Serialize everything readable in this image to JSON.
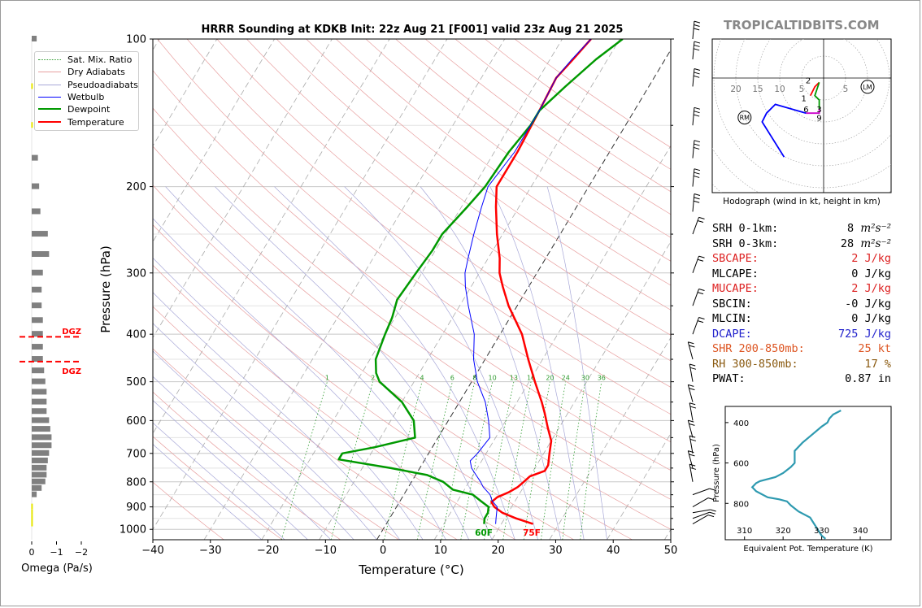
{
  "title": "HRRR Sounding at KDKB Init: 22z Aug 21 [F001] valid 23z Aug 21 2025",
  "brand": "TROPICALTIDBITS.COM",
  "omega_label": "Omega (Pa/s)",
  "omega_ticks": [
    "0",
    "−1",
    "−2"
  ],
  "dgz_label": "DGZ",
  "surface_labels": {
    "dewpoint": "60F",
    "temperature": "75F"
  },
  "mixing_ratio_labels": [
    "1",
    "2",
    "4",
    "6",
    "8",
    "10",
    "13",
    "16",
    "20",
    "24",
    "30",
    "36"
  ],
  "legend": [
    {
      "label": "Sat. Mix. Ratio",
      "color": "#2e9b2e",
      "style": "dotted"
    },
    {
      "label": "Dry Adiabats",
      "color": "#e8a0a0",
      "style": "solid"
    },
    {
      "label": "Pseudoadiabats",
      "color": "#a8a8d8",
      "style": "solid"
    },
    {
      "label": "Wetbulb",
      "color": "#0000ff",
      "style": "solid"
    },
    {
      "label": "Dewpoint",
      "color": "#009900",
      "style": "solid-thick"
    },
    {
      "label": "Temperature",
      "color": "#ff0000",
      "style": "solid-thick"
    }
  ],
  "hodograph": {
    "caption": "Hodograph (wind in kt, height in km)",
    "ring_labels": [
      "20",
      "15",
      "10",
      "5",
      "5"
    ],
    "height_labels": [
      "2",
      "1",
      "6",
      "3",
      "9"
    ],
    "storm_motion_labels": [
      "RM",
      "LM"
    ]
  },
  "stats": [
    {
      "label": "SRH 0-1km:",
      "value": "8",
      "unit": "m²s⁻²",
      "color": "#000000"
    },
    {
      "label": "SRH 0-3km:",
      "value": "28",
      "unit": "m²s⁻²",
      "color": "#000000"
    },
    {
      "label": "SBCAPE:",
      "value": "2 J/kg",
      "unit": "",
      "color": "#dd2222"
    },
    {
      "label": "MLCAPE:",
      "value": "0 J/kg",
      "unit": "",
      "color": "#000000"
    },
    {
      "label": "MUCAPE:",
      "value": "2 J/kg",
      "unit": "",
      "color": "#dd2222"
    },
    {
      "label": "SBCIN:",
      "value": "-0 J/kg",
      "unit": "",
      "color": "#000000"
    },
    {
      "label": "MLCIN:",
      "value": "0 J/kg",
      "unit": "",
      "color": "#000000"
    },
    {
      "label": "DCAPE:",
      "value": "725 J/kg",
      "unit": "",
      "color": "#2222cc"
    },
    {
      "label": "SHR 200-850mb:",
      "value": "25 kt",
      "unit": "",
      "color": "#dd5522"
    },
    {
      "label": "RH 300-850mb:",
      "value": "17 %",
      "unit": "",
      "color": "#8a5a10"
    },
    {
      "label": "PWAT:",
      "value": "0.87 in",
      "unit": "",
      "color": "#000000"
    }
  ],
  "chart_data": [
    {
      "type": "line",
      "subtype": "skew-T log-P sounding",
      "xlabel": "Temperature (°C)",
      "ylabel": "Pressure (hPa)",
      "xlim": [
        -40,
        50
      ],
      "ylim": [
        1050,
        100
      ],
      "y_scale": "log",
      "x_ticks": [
        -40,
        -30,
        -20,
        -10,
        0,
        10,
        20,
        30,
        40,
        50
      ],
      "y_ticks": [
        100,
        200,
        300,
        400,
        500,
        600,
        700,
        800,
        900,
        1000
      ],
      "series": [
        {
          "name": "Temperature",
          "color": "#ff0000",
          "points": [
            [
              975,
              25.5
            ],
            [
              950,
              22
            ],
            [
              925,
              19
            ],
            [
              900,
              17
            ],
            [
              880,
              16
            ],
            [
              860,
              16.5
            ],
            [
              840,
              18
            ],
            [
              820,
              19
            ],
            [
              800,
              19.5
            ],
            [
              780,
              20
            ],
            [
              760,
              22
            ],
            [
              740,
              22
            ],
            [
              700,
              21
            ],
            [
              660,
              20
            ],
            [
              620,
              18
            ],
            [
              580,
              16
            ],
            [
              550,
              14.3
            ],
            [
              500,
              11
            ],
            [
              450,
              7.5
            ],
            [
              400,
              3.8
            ],
            [
              350,
              -1.5
            ],
            [
              320,
              -4.5
            ],
            [
              300,
              -6.5
            ],
            [
              280,
              -8
            ],
            [
              250,
              -11
            ],
            [
              220,
              -14
            ],
            [
              200,
              -16
            ],
            [
              170,
              -16
            ],
            [
              140,
              -16.5
            ],
            [
              120,
              -17
            ],
            [
              110,
              -16
            ],
            [
              100,
              -15
            ]
          ]
        },
        {
          "name": "Dewpoint",
          "color": "#009900",
          "points": [
            [
              975,
              17
            ],
            [
              950,
              16.5
            ],
            [
              925,
              16.5
            ],
            [
              900,
              16
            ],
            [
              875,
              14
            ],
            [
              850,
              12
            ],
            [
              830,
              8
            ],
            [
              800,
              5.5
            ],
            [
              775,
              2
            ],
            [
              750,
              -5
            ],
            [
              720,
              -15
            ],
            [
              700,
              -15
            ],
            [
              680,
              -10
            ],
            [
              650,
              -4
            ],
            [
              600,
              -6
            ],
            [
              550,
              -10
            ],
            [
              500,
              -16
            ],
            [
              480,
              -17.5
            ],
            [
              450,
              -19
            ],
            [
              400,
              -20
            ],
            [
              370,
              -20.5
            ],
            [
              340,
              -21.5
            ],
            [
              300,
              -21
            ],
            [
              270,
              -20.5
            ],
            [
              250,
              -20.5
            ],
            [
              220,
              -19
            ],
            [
              200,
              -18
            ],
            [
              170,
              -17.5
            ],
            [
              150,
              -16.5
            ],
            [
              140,
              -16.5
            ],
            [
              125,
              -14.5
            ],
            [
              110,
              -12
            ],
            [
              100,
              -9.5
            ]
          ]
        },
        {
          "name": "Wetbulb",
          "color": "#0000ff",
          "points": [
            [
              975,
              19
            ],
            [
              950,
              18.5
            ],
            [
              925,
              18
            ],
            [
              900,
              17.5
            ],
            [
              875,
              16
            ],
            [
              850,
              15
            ],
            [
              820,
              13
            ],
            [
              800,
              12
            ],
            [
              775,
              10.5
            ],
            [
              750,
              9
            ],
            [
              725,
              8
            ],
            [
              700,
              8.5
            ],
            [
              650,
              9
            ],
            [
              600,
              7
            ],
            [
              550,
              4.5
            ],
            [
              500,
              1
            ],
            [
              450,
              -2
            ],
            [
              400,
              -4.5
            ],
            [
              350,
              -8.5
            ],
            [
              320,
              -11
            ],
            [
              300,
              -12.5
            ],
            [
              280,
              -13.5
            ],
            [
              250,
              -15
            ],
            [
              220,
              -16.5
            ],
            [
              200,
              -17.5
            ],
            [
              170,
              -16.5
            ],
            [
              140,
              -16.5
            ],
            [
              120,
              -17
            ],
            [
              110,
              -16.2
            ],
            [
              100,
              -15
            ]
          ]
        }
      ],
      "wind_barb_levels": [
        975,
        950,
        925,
        900,
        850,
        800,
        750,
        700,
        650,
        600,
        550,
        500,
        450,
        400,
        350,
        300,
        250,
        225,
        200,
        175,
        150,
        125,
        110,
        100
      ]
    },
    {
      "type": "line",
      "subtype": "hodograph",
      "series": [
        {
          "name": "Hodograph",
          "points": [
            [
              -3,
              -4
            ],
            [
              -2,
              -2
            ],
            [
              -1,
              -1
            ],
            [
              -2,
              -4
            ],
            [
              -1,
              -5
            ],
            [
              -1,
              -7
            ],
            [
              -1,
              -8
            ],
            [
              -4,
              -8
            ],
            [
              -11,
              -6
            ],
            [
              -13,
              -8
            ],
            [
              -14,
              -10
            ],
            [
              -9,
              -18
            ]
          ]
        }
      ]
    },
    {
      "type": "line",
      "xlabel": "Equivalent Pot. Temperature (K)",
      "ylabel": "Pressure (hPa)",
      "xlim": [
        305,
        348
      ],
      "ylim": [
        980,
        320
      ],
      "x_ticks": [
        310,
        320,
        330,
        340
      ],
      "y_ticks": [
        400,
        600,
        800
      ],
      "series": [
        {
          "name": "Theta-E",
          "color": "#2e9ab0",
          "points": [
            [
              975,
              331
            ],
            [
              960,
              330
            ],
            [
              930,
              329
            ],
            [
              900,
              328
            ],
            [
              870,
              327
            ],
            [
              840,
              324
            ],
            [
              810,
              322
            ],
            [
              790,
              321
            ],
            [
              780,
              319
            ],
            [
              770,
              316
            ],
            [
              740,
              313
            ],
            [
              720,
              312
            ],
            [
              700,
              313
            ],
            [
              690,
              314
            ],
            [
              670,
              318
            ],
            [
              650,
              320
            ],
            [
              620,
              322
            ],
            [
              600,
              323
            ],
            [
              580,
              323
            ],
            [
              540,
              323
            ],
            [
              500,
              325
            ],
            [
              460,
              327.5
            ],
            [
              420,
              330
            ],
            [
              400,
              331.5
            ],
            [
              380,
              332
            ],
            [
              360,
              333
            ],
            [
              340,
              335
            ]
          ]
        }
      ]
    },
    {
      "type": "bar",
      "subtype": "omega profile",
      "xlabel": "Omega (Pa/s)",
      "xlim": [
        0.2,
        -2.2
      ],
      "x_ticks": [
        0,
        -1,
        -2
      ],
      "series": [
        {
          "name": "Omega",
          "points": [
            [
              975,
              0.02
            ],
            [
              950,
              0.02
            ],
            [
              925,
              0.02
            ],
            [
              900,
              0.02
            ],
            [
              850,
              -0.2
            ],
            [
              825,
              -0.4
            ],
            [
              800,
              -0.55
            ],
            [
              775,
              -0.6
            ],
            [
              750,
              -0.6
            ],
            [
              725,
              -0.65
            ],
            [
              700,
              -0.7
            ],
            [
              675,
              -0.8
            ],
            [
              650,
              -0.8
            ],
            [
              625,
              -0.75
            ],
            [
              600,
              -0.7
            ],
            [
              575,
              -0.6
            ],
            [
              550,
              -0.6
            ],
            [
              525,
              -0.6
            ],
            [
              500,
              -0.55
            ],
            [
              475,
              -0.5
            ],
            [
              450,
              -0.45
            ],
            [
              425,
              -0.45
            ],
            [
              400,
              -0.45
            ],
            [
              375,
              -0.45
            ],
            [
              350,
              -0.4
            ],
            [
              325,
              -0.4
            ],
            [
              300,
              -0.45
            ],
            [
              275,
              -0.7
            ],
            [
              250,
              -0.65
            ],
            [
              225,
              -0.35
            ],
            [
              200,
              -0.3
            ],
            [
              175,
              -0.25
            ],
            [
              150,
              0.02
            ],
            [
              125,
              0.02
            ],
            [
              100,
              -0.2
            ]
          ]
        }
      ],
      "dgz_bounds": [
        405,
        455
      ]
    }
  ]
}
